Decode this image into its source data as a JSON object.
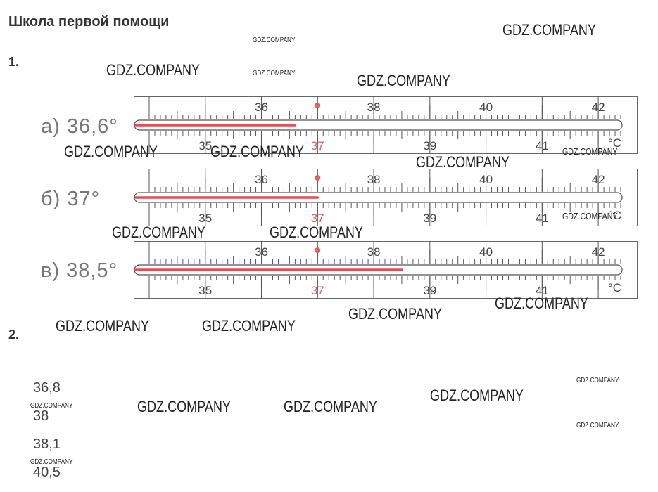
{
  "page": {
    "title": "Школа первой помощи"
  },
  "task1": {
    "number": "1.",
    "degree_unit": "°C",
    "thermometers": [
      {
        "label": "а) 36,6°",
        "reading": 36.6
      },
      {
        "label": "б) 37°",
        "reading": 37
      },
      {
        "label": "в) 38,5°",
        "reading": 38.5
      }
    ],
    "scale": {
      "min": 34.0,
      "max": 42.4,
      "upper_labels": [
        "36",
        "38",
        "40",
        "42"
      ],
      "lower_labels": [
        "35",
        "37",
        "39",
        "41"
      ],
      "normal_mark": "37"
    },
    "colors": {
      "mercury": "#e05050",
      "normal": "#e06060",
      "tick": "#555555"
    }
  },
  "task2": {
    "number": "2.",
    "answers": [
      "36,8",
      "38",
      "38,1",
      "40,5"
    ]
  },
  "watermark": "GDZ.COMPANY"
}
